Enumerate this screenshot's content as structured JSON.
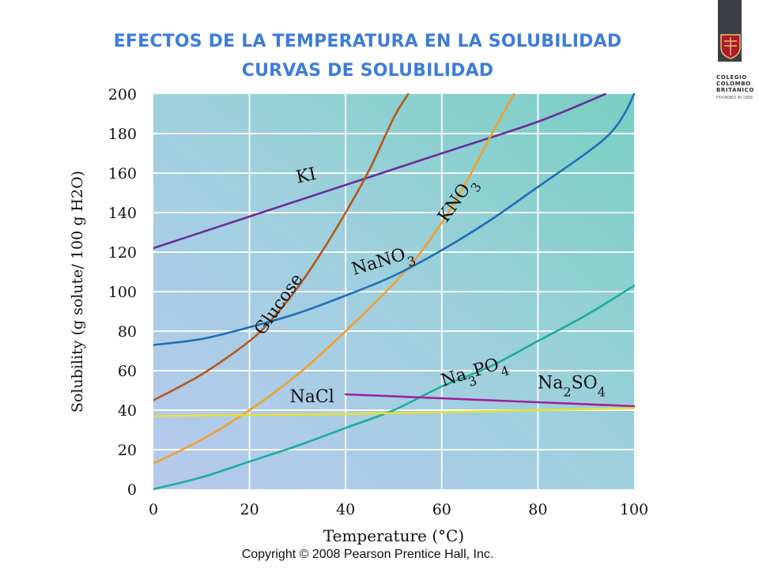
{
  "slide": {
    "title_line1": "EFECTOS DE LA TEMPERATURA EN LA SOLUBILIDAD",
    "title_line2": "CURVAS DE SOLUBILIDAD",
    "copyright": "Copyright © 2008 Pearson Prentice Hall, Inc.",
    "logo_line1": "COLEGIO",
    "logo_line2": "COLOMBO",
    "logo_line3": "BRITÁNICO",
    "logo_founded": "FOUNDED IN 1956"
  },
  "colors": {
    "title": "#3d7dd8",
    "KI": "#6a2c9a",
    "Glucose": "#b5581c",
    "KNO3": "#f0a030",
    "NaNO3": "#1f6fb8",
    "Na3PO4": "#1bae9a",
    "Na2SO4": "#a0209a",
    "NaCl": "#e8e030"
  },
  "chart_data": {
    "type": "line",
    "title": "",
    "xlabel": "Temperature (°C)",
    "ylabel": "Solubility (g solute/ 100 g H2O)",
    "xlim": [
      0,
      100
    ],
    "ylim": [
      0,
      200
    ],
    "xticks": [
      "0",
      "20",
      "40",
      "60",
      "80",
      "100"
    ],
    "yticks": [
      "0",
      "20",
      "40",
      "60",
      "80",
      "100",
      "120",
      "140",
      "160",
      "180",
      "200"
    ],
    "grid": true,
    "series": [
      {
        "name": "KI",
        "label": "KI",
        "x": [
          0,
          20,
          40,
          60,
          80,
          94
        ],
        "y": [
          122,
          138,
          154,
          170,
          186,
          200
        ]
      },
      {
        "name": "Glucose",
        "label": "Glucose",
        "x": [
          0,
          10,
          20,
          25,
          30,
          35,
          40,
          45,
          50,
          53
        ],
        "y": [
          45,
          58,
          75,
          87,
          102,
          120,
          140,
          162,
          188,
          200
        ]
      },
      {
        "name": "KNO3",
        "label": "KNO3",
        "x": [
          0,
          10,
          20,
          30,
          40,
          50,
          55,
          60,
          65,
          70,
          75
        ],
        "y": [
          13,
          25,
          40,
          58,
          80,
          104,
          118,
          135,
          155,
          178,
          200
        ]
      },
      {
        "name": "NaNO3",
        "label": "NaNO3",
        "x": [
          0,
          10,
          20,
          30,
          40,
          50,
          60,
          70,
          80,
          90,
          95,
          98,
          100
        ],
        "y": [
          73,
          76,
          82,
          89,
          98,
          108,
          121,
          136,
          153,
          170,
          180,
          190,
          200
        ]
      },
      {
        "name": "Na3PO4",
        "label": "Na3PO4",
        "x": [
          0,
          10,
          20,
          30,
          40,
          50,
          60,
          70,
          80,
          90,
          100
        ],
        "y": [
          0,
          6,
          14,
          22,
          31,
          40,
          52,
          62,
          75,
          88,
          103
        ]
      },
      {
        "name": "Na2SO4",
        "label": "Na2SO4",
        "x": [
          40,
          60,
          80,
          100
        ],
        "y": [
          48,
          46,
          44,
          42
        ]
      },
      {
        "name": "NaCl",
        "label": "NaCl",
        "x": [
          0,
          20,
          40,
          60,
          80,
          100
        ],
        "y": [
          37,
          37.5,
          38,
          39,
          40,
          41
        ]
      }
    ]
  }
}
